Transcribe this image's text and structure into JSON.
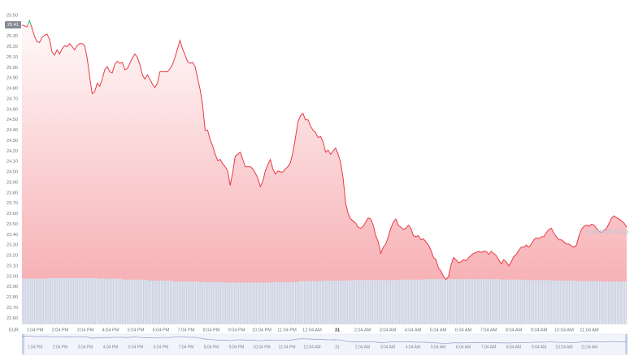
{
  "chart_data": {
    "type": "line",
    "currency": "EUR",
    "watermark": "CoinMarketCap",
    "line_color": "#ea3943",
    "up_color": "#16c784",
    "price_badge": {
      "value": 25.41,
      "label": "25.41"
    },
    "ylim": [
      22.54,
      25.57
    ],
    "yticks": [
      {
        "value": 25.5,
        "label": "25.50"
      },
      {
        "value": 25.3,
        "label": "25.30"
      },
      {
        "value": 25.2,
        "label": "25.20"
      },
      {
        "value": 25.1,
        "label": "25.10"
      },
      {
        "value": 25,
        "label": "25.00"
      },
      {
        "value": 24.9,
        "label": "24.90"
      },
      {
        "value": 24.8,
        "label": "24.80"
      },
      {
        "value": 24.7,
        "label": "24.70"
      },
      {
        "value": 24.6,
        "label": "24.60"
      },
      {
        "value": 24.5,
        "label": "24.50"
      },
      {
        "value": 24.4,
        "label": "24.40"
      },
      {
        "value": 24.3,
        "label": "24.30"
      },
      {
        "value": 24.2,
        "label": "24.20"
      },
      {
        "value": 24.1,
        "label": "24.10"
      },
      {
        "value": 24,
        "label": "24.00"
      },
      {
        "value": 23.9,
        "label": "23.90"
      },
      {
        "value": 23.8,
        "label": "23.80"
      },
      {
        "value": 23.7,
        "label": "23.70"
      },
      {
        "value": 23.6,
        "label": "23.60"
      },
      {
        "value": 23.5,
        "label": "23.50"
      },
      {
        "value": 23.4,
        "label": "23.40"
      },
      {
        "value": 23.3,
        "label": "23.30"
      },
      {
        "value": 23.2,
        "label": "23.20"
      },
      {
        "value": 23.1,
        "label": "23.10"
      },
      {
        "value": 23,
        "label": "23.00"
      },
      {
        "value": 22.9,
        "label": "22.90"
      },
      {
        "value": 22.8,
        "label": "22.80"
      },
      {
        "value": 22.7,
        "label": "22.70"
      },
      {
        "value": 22.6,
        "label": "22.60"
      }
    ],
    "x_labels": [
      "1:04 PM",
      "2:04 PM",
      "3:04 PM",
      "4:04 PM",
      "5:04 PM",
      "6:04 PM",
      "7:04 PM",
      "8:04 PM",
      "9:04 PM",
      "10:04 PM",
      "11:04 PM",
      "12:04 AM",
      "31",
      "2:04 AM",
      "3:04 AM",
      "4:04 AM",
      "5:04 AM",
      "6:04 AM",
      "7:04 AM",
      "8:04 AM",
      "9:04 AM",
      "10:04 AM",
      "11:04 AM"
    ],
    "values": [
      25.41,
      25.4,
      25.39,
      25.45,
      25.38,
      25.3,
      25.25,
      25.24,
      25.29,
      25.31,
      25.32,
      25.27,
      25.15,
      25.12,
      25.17,
      25.13,
      25.18,
      25.21,
      25.2,
      25.23,
      25.2,
      25.17,
      25.21,
      25.23,
      25.23,
      25.21,
      25.09,
      24.91,
      24.75,
      24.77,
      24.85,
      24.82,
      24.89,
      24.98,
      25.01,
      24.96,
      24.95,
      25.03,
      25.06,
      25.04,
      25.05,
      24.98,
      24.99,
      25.04,
      25.09,
      25.13,
      25.1,
      25.03,
      24.93,
      24.89,
      24.93,
      24.89,
      24.84,
      24.81,
      24.85,
      24.96,
      24.96,
      24.96,
      24.96,
      24.99,
      25.03,
      25.1,
      25.18,
      25.26,
      25.18,
      25.12,
      25.06,
      25.04,
      25.05,
      25.01,
      24.9,
      24.79,
      24.64,
      24.4,
      24.4,
      24.31,
      24.25,
      24.17,
      24.11,
      24.12,
      24.08,
      24.05,
      24.01,
      23.87,
      24.0,
      24.15,
      24.17,
      24.19,
      24.12,
      24.05,
      24.05,
      24.05,
      24.03,
      23.99,
      23.94,
      23.86,
      23.91,
      24.01,
      24.07,
      24.12,
      24.03,
      23.98,
      24.01,
      24.0,
      24.0,
      24.03,
      24.05,
      24.09,
      24.19,
      24.33,
      24.48,
      24.54,
      24.56,
      24.5,
      24.5,
      24.44,
      24.4,
      24.38,
      24.33,
      24.34,
      24.29,
      24.19,
      24.21,
      24.17,
      24.2,
      24.23,
      24.17,
      24.09,
      23.94,
      23.7,
      23.6,
      23.55,
      23.53,
      23.51,
      23.47,
      23.46,
      23.48,
      23.52,
      23.56,
      23.55,
      23.49,
      23.39,
      23.33,
      23.22,
      23.28,
      23.31,
      23.38,
      23.46,
      23.52,
      23.55,
      23.49,
      23.47,
      23.45,
      23.46,
      23.49,
      23.46,
      23.39,
      23.38,
      23.39,
      23.35,
      23.36,
      23.33,
      23.3,
      23.25,
      23.18,
      23.16,
      23.08,
      23.05,
      23.0,
      22.97,
      23.0,
      23.11,
      23.18,
      23.16,
      23.13,
      23.14,
      23.16,
      23.15,
      23.18,
      23.2,
      23.22,
      23.23,
      23.24,
      23.23,
      23.24,
      23.24,
      23.21,
      23.24,
      23.22,
      23.2,
      23.16,
      23.12,
      23.16,
      23.14,
      23.1,
      23.14,
      23.19,
      23.21,
      23.25,
      23.28,
      23.28,
      23.3,
      23.28,
      23.31,
      23.35,
      23.37,
      23.36,
      23.38,
      23.38,
      23.42,
      23.45,
      23.46,
      23.41,
      23.38,
      23.35,
      23.35,
      23.33,
      23.31,
      23.31,
      23.29,
      23.28,
      23.3,
      23.39,
      23.45,
      23.48,
      23.49,
      23.48,
      23.5,
      23.49,
      23.46,
      23.43,
      23.42,
      23.44,
      23.46,
      23.51,
      23.56,
      23.58,
      23.56,
      23.55,
      23.53,
      23.51,
      23.47
    ],
    "volume": {
      "ylim": [
        0,
        100
      ],
      "color": "#d3d8e6",
      "values": [
        94,
        95,
        95,
        94,
        92,
        90,
        88,
        87,
        86,
        86,
        87,
        89,
        90,
        91,
        91,
        92,
        93,
        93,
        93,
        92,
        91,
        90,
        89,
        88
      ]
    }
  }
}
